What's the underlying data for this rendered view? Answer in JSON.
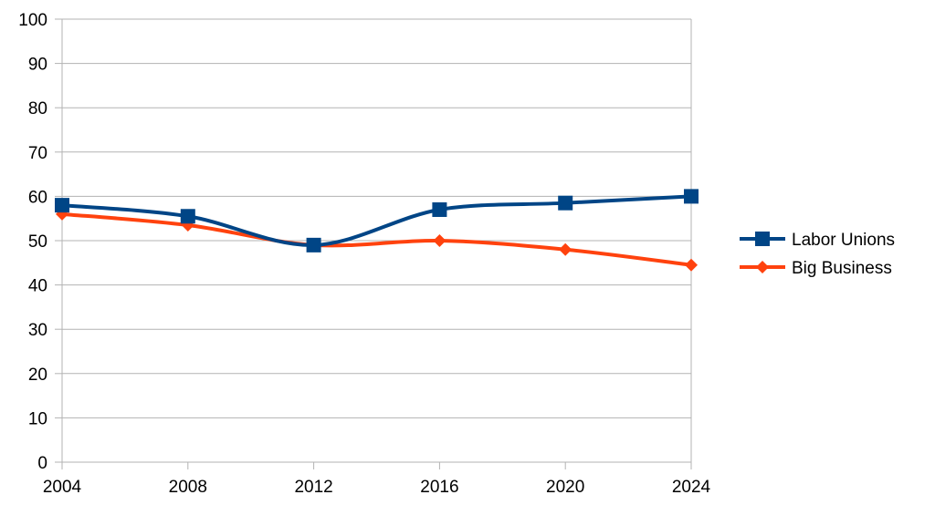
{
  "chart_data": {
    "type": "line",
    "title": "",
    "xlabel": "",
    "ylabel": "",
    "x": [
      2004,
      2008,
      2012,
      2016,
      2020,
      2024
    ],
    "xlim": [
      2004,
      2024
    ],
    "ylim": [
      0,
      100
    ],
    "y_ticks": [
      0,
      10,
      20,
      30,
      40,
      50,
      60,
      70,
      80,
      90,
      100
    ],
    "grid": "horizontal",
    "legend_position": "right",
    "series": [
      {
        "name": "Labor Unions",
        "values": [
          58,
          55.5,
          49,
          57,
          58.5,
          60
        ],
        "color": "#004586",
        "marker": "square"
      },
      {
        "name": "Big Business",
        "values": [
          56,
          53.5,
          49,
          50,
          48,
          44.5
        ],
        "color": "#ff420e",
        "marker": "diamond"
      }
    ]
  }
}
